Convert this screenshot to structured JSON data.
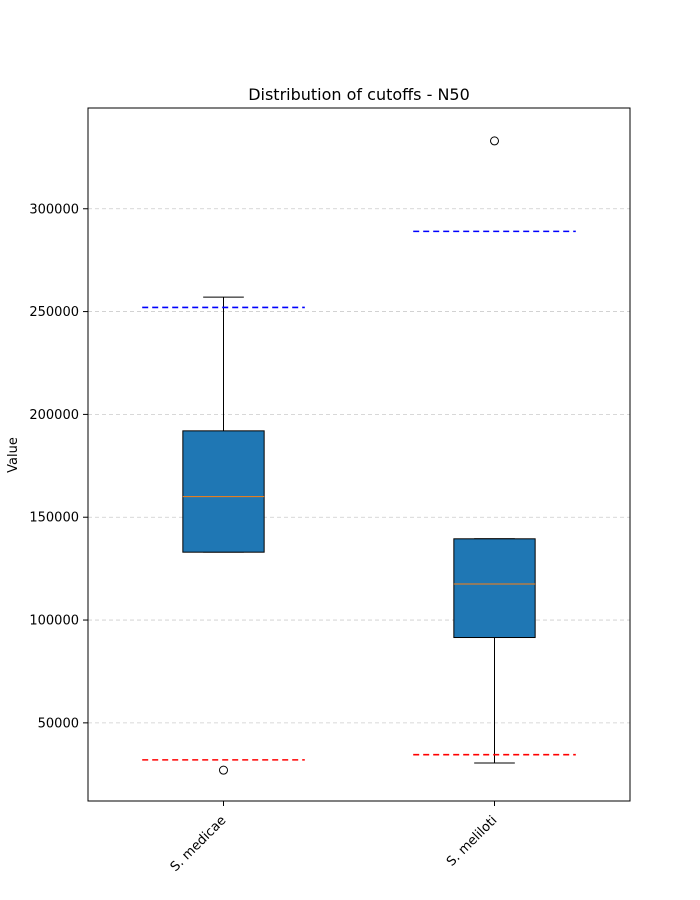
{
  "chart_data": {
    "type": "box",
    "title": "Distribution of cutoffs - N50",
    "xlabel": "",
    "ylabel": "Value",
    "ylim": [
      12000,
      349000
    ],
    "yticks": [
      50000,
      100000,
      150000,
      200000,
      250000,
      300000
    ],
    "ytick_labels": [
      "50000",
      "100000",
      "150000",
      "200000",
      "250000",
      "300000"
    ],
    "grid": "y-dashed",
    "categories": [
      "S. medicae",
      "S. meliloti"
    ],
    "boxes": [
      {
        "name": "S. medicae",
        "whisker_low": 133000,
        "q1": 133000,
        "median": 160000,
        "q3": 192000,
        "whisker_high": 257000,
        "outliers": [
          27000
        ],
        "upper_cutoff": 252000,
        "lower_cutoff": 32000
      },
      {
        "name": "S. meliloti",
        "whisker_low": 30500,
        "q1": 91500,
        "median": 117500,
        "q3": 139500,
        "whisker_high": 139500,
        "outliers": [
          333000
        ],
        "upper_cutoff": 289000,
        "lower_cutoff": 34500
      }
    ],
    "colors": {
      "box_fill": "#1f77b4",
      "median": "#ff7f0e",
      "upper_cutoff": "#0000ff",
      "lower_cutoff": "#ff0000",
      "grid": "#cccccc"
    }
  }
}
